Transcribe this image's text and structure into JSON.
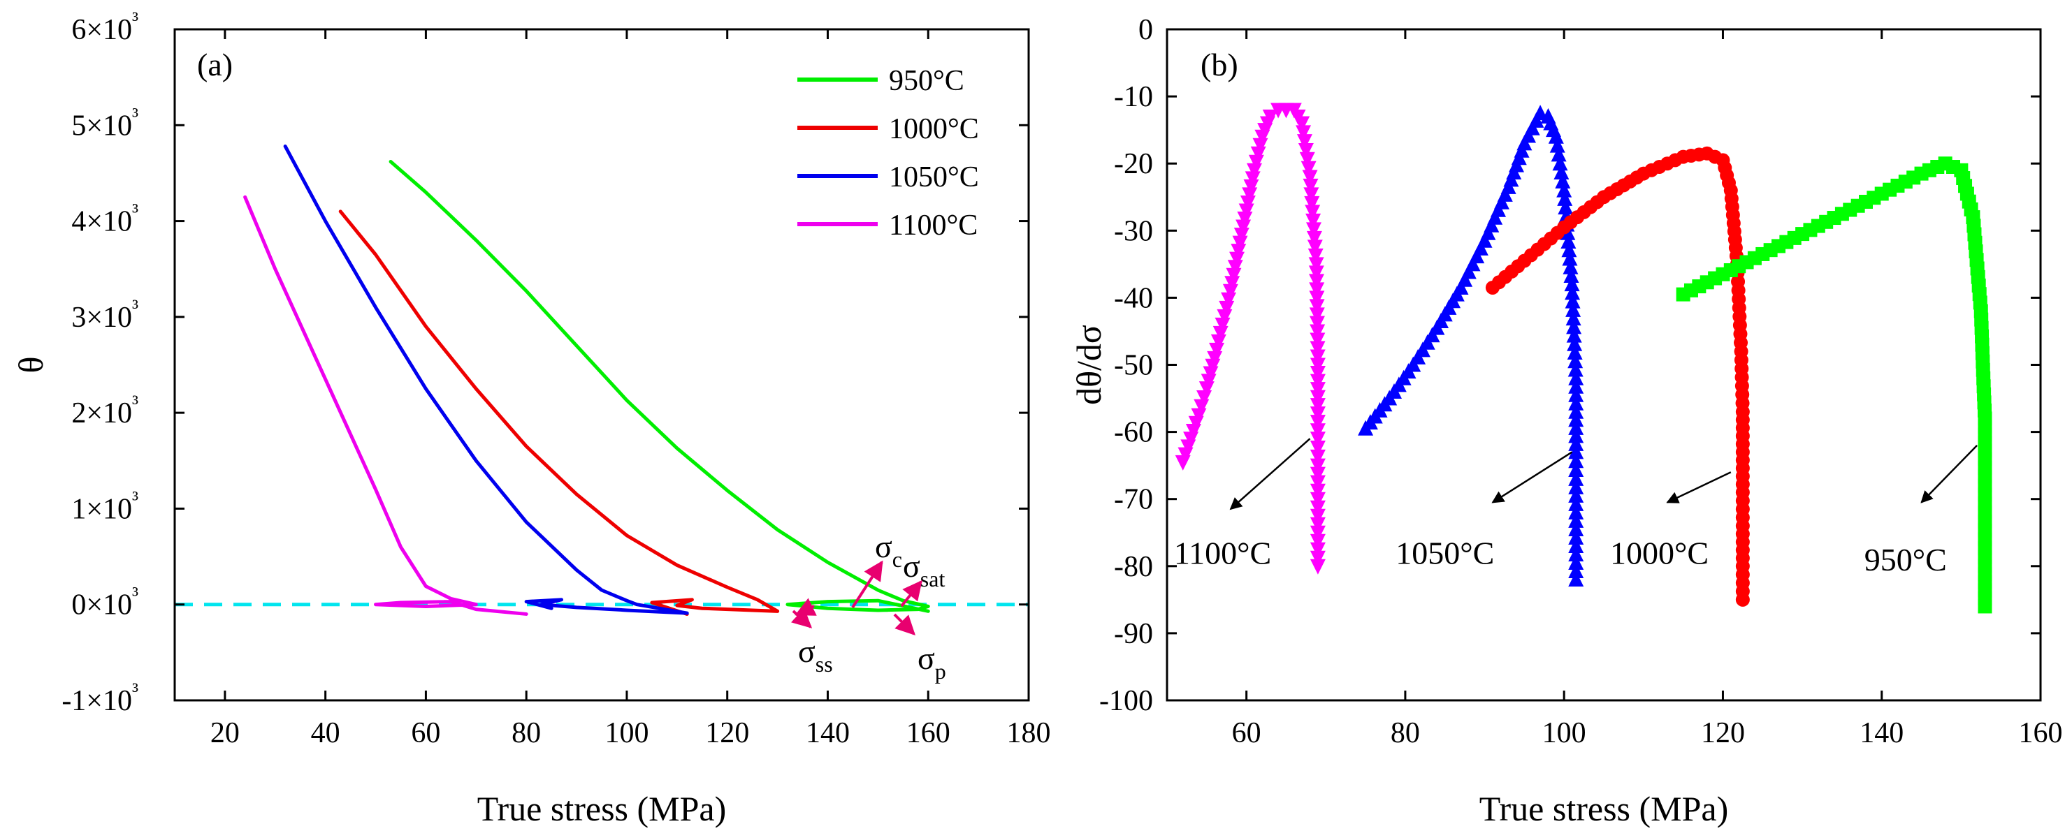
{
  "chart_data": [
    {
      "type": "line",
      "panel_label": "(a)",
      "xlabel": "True stress (MPa)",
      "ylabel": "θ",
      "xlim": [
        10,
        180
      ],
      "ylim": [
        -1000,
        6000
      ],
      "x_ticks": [
        "20",
        "40",
        "60",
        "80",
        "100",
        "120",
        "140",
        "160",
        "180"
      ],
      "y_ticks": [
        "-1×10³",
        "0×10³",
        "1×10³",
        "2×10³",
        "3×10³",
        "4×10³",
        "5×10³",
        "6×10³"
      ],
      "reference_line": {
        "y": 0,
        "color": "#00e5ee",
        "style": "dashed"
      },
      "series": [
        {
          "name": "950°C",
          "color": "#00ee00",
          "x": [
            53,
            60,
            70,
            80,
            90,
            100,
            110,
            120,
            130,
            140,
            150,
            155,
            160,
            158,
            150,
            140,
            132,
            140,
            150,
            160
          ],
          "y": [
            4620,
            4300,
            3800,
            3270,
            2700,
            2130,
            1630,
            1190,
            780,
            440,
            150,
            40,
            -20,
            -50,
            -60,
            -40,
            0,
            30,
            40,
            -70
          ]
        },
        {
          "name": "1000°C",
          "color": "#ee0000",
          "x": [
            43,
            50,
            60,
            70,
            80,
            90,
            100,
            110,
            120,
            126,
            130,
            125,
            115,
            110,
            113,
            105,
            112
          ],
          "y": [
            4100,
            3650,
            2900,
            2250,
            1650,
            1150,
            720,
            410,
            180,
            50,
            -70,
            -60,
            -40,
            -10,
            50,
            20,
            -100
          ]
        },
        {
          "name": "1050°C",
          "color": "#0000ee",
          "x": [
            32,
            40,
            50,
            60,
            70,
            80,
            90,
            95,
            100,
            102,
            112,
            100,
            90,
            83,
            87,
            80,
            85
          ],
          "y": [
            4780,
            4000,
            3100,
            2250,
            1500,
            860,
            360,
            150,
            40,
            0,
            -90,
            -60,
            -30,
            0,
            50,
            30,
            -40
          ]
        },
        {
          "name": "1100°C",
          "color": "#ee00ee",
          "x": [
            24,
            30,
            40,
            50,
            55,
            60,
            65,
            70,
            60,
            50,
            55,
            65,
            70,
            80
          ],
          "y": [
            4250,
            3500,
            2350,
            1200,
            600,
            190,
            60,
            0,
            -20,
            0,
            20,
            30,
            -50,
            -100
          ]
        }
      ],
      "annotations": [
        {
          "base": "σ",
          "sub": "c",
          "x": 150,
          "y": 420
        },
        {
          "base": "σ",
          "sub": "sat",
          "x": 155,
          "y": 420
        },
        {
          "base": "σ",
          "sub": "ss",
          "x": 138,
          "y": -650
        },
        {
          "base": "σ",
          "sub": "p",
          "x": 156,
          "y": -650
        }
      ]
    },
    {
      "type": "scatter",
      "panel_label": "(b)",
      "xlabel": "True stress (MPa)",
      "ylabel": "dθ/dσ",
      "xlim": [
        50,
        160
      ],
      "ylim": [
        -100,
        0
      ],
      "x_ticks": [
        "60",
        "80",
        "100",
        "120",
        "140",
        "160"
      ],
      "y_ticks": [
        "0",
        "-10",
        "-20",
        "-30",
        "-40",
        "-50",
        "-60",
        "-70",
        "-80",
        "-90",
        "-100"
      ],
      "series": [
        {
          "name": "1100°C",
          "color": "#ff00ff",
          "marker": "triangle-down",
          "x": [
            52,
            53,
            54,
            55,
            56,
            57,
            58,
            59,
            60,
            61,
            62,
            63,
            64,
            65,
            66,
            67,
            68,
            68.8,
            69,
            69,
            69,
            69,
            69,
            69,
            69
          ],
          "y": [
            -64.5,
            -61,
            -57.5,
            -53.5,
            -49,
            -44,
            -39,
            -33,
            -27,
            -21,
            -16,
            -13,
            -12,
            -12,
            -12,
            -14,
            -22,
            -35,
            -50,
            -56,
            -61,
            -65,
            -70,
            -75,
            -80
          ]
        },
        {
          "name": "1050°C",
          "color": "#0000ff",
          "marker": "triangle-up",
          "x": [
            75,
            78,
            81,
            84,
            87,
            90,
            93,
            95,
            97,
            98,
            99,
            100,
            101,
            101.5,
            101.5,
            101.5,
            101.5,
            101.5,
            101.5,
            101.5
          ],
          "y": [
            -59.5,
            -55,
            -50,
            -44.5,
            -38.5,
            -31.5,
            -23.5,
            -17,
            -12.5,
            -13,
            -16,
            -24,
            -38,
            -52,
            -57,
            -63,
            -67,
            -72,
            -77,
            -82
          ]
        },
        {
          "name": "1000°C",
          "color": "#ff0000",
          "marker": "circle",
          "x": [
            91,
            95,
            100,
            105,
            110,
            115,
            118,
            120,
            121,
            121.8,
            122.3,
            122.5,
            122.5,
            122.5,
            122.5,
            122.5,
            122.5
          ],
          "y": [
            -38.5,
            -34.5,
            -29.5,
            -25,
            -21.5,
            -19,
            -18.5,
            -19.5,
            -24,
            -35,
            -48,
            -57,
            -63,
            -69,
            -74,
            -80,
            -85
          ]
        },
        {
          "name": "950°C",
          "color": "#00ff00",
          "marker": "square",
          "x": [
            115,
            120,
            125,
            130,
            135,
            140,
            145,
            148,
            150,
            151.5,
            152.5,
            152.8,
            153,
            153,
            153,
            153,
            153
          ],
          "y": [
            -39.5,
            -36.5,
            -33.5,
            -30.5,
            -27.5,
            -24.5,
            -21.5,
            -20,
            -21,
            -28,
            -42,
            -52,
            -58,
            -64,
            -72,
            -80,
            -86
          ]
        }
      ],
      "labels": [
        {
          "text": "1100°C",
          "x": 57,
          "y": -78
        },
        {
          "text": "1050°C",
          "x": 85,
          "y": -78
        },
        {
          "text": "1000°C",
          "x": 112,
          "y": -78
        },
        {
          "text": "950°C",
          "x": 143,
          "y": -79
        }
      ],
      "arrows": [
        {
          "from": [
            68,
            -61
          ],
          "to": [
            58,
            -71.5
          ]
        },
        {
          "from": [
            101,
            -63
          ],
          "to": [
            91,
            -70.5
          ]
        },
        {
          "from": [
            121,
            -66
          ],
          "to": [
            113,
            -70.5
          ]
        },
        {
          "from": [
            152,
            -62
          ],
          "to": [
            145,
            -70.5
          ]
        }
      ]
    }
  ]
}
